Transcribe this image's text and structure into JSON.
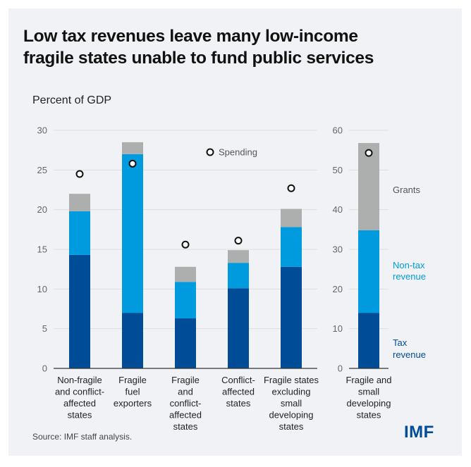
{
  "header": {
    "title_line1": "Low tax revenues leave many low-income",
    "title_line2": "fragile states unable to fund public services",
    "unit_label": "Percent of GDP"
  },
  "footer": {
    "source": "Source: IMF staff analysis.",
    "logo": "IMF"
  },
  "colors": {
    "tax": "#004C97",
    "nontax": "#009BDE",
    "grants": "#ADAFAF",
    "spending_marker_stroke": "#111111",
    "spending_marker_fill": "#FFFFFF",
    "gridline": "#DCDDE0",
    "axis": "#333333"
  },
  "chart_data": [
    {
      "type": "bar",
      "stacked": true,
      "title": "",
      "ylabel": "Percent of GDP",
      "ylim": [
        0,
        30
      ],
      "yticks": [
        0,
        5,
        10,
        15,
        20,
        25,
        30
      ],
      "grid": true,
      "categories": [
        [
          "Non-fragile",
          "and conflict-",
          "affected",
          "states"
        ],
        [
          "Fragile",
          "fuel",
          "exporters"
        ],
        [
          "Fragile",
          "and",
          "conflict-",
          "affected",
          "states"
        ],
        [
          "Conflict-",
          "affected",
          "states"
        ],
        [
          "Fragile states",
          "excluding",
          "small",
          "developing",
          "states"
        ]
      ],
      "series": [
        {
          "name": "Tax revenue",
          "values": [
            14.3,
            7.0,
            6.3,
            10.1,
            12.8
          ]
        },
        {
          "name": "Non-tax revenue",
          "values": [
            5.5,
            20.0,
            4.6,
            3.2,
            5.0
          ]
        },
        {
          "name": "Grants",
          "values": [
            2.2,
            1.5,
            1.9,
            1.6,
            2.3
          ]
        }
      ],
      "markers": {
        "name": "Spending",
        "values": [
          24.5,
          25.8,
          15.6,
          16.1,
          22.7
        ]
      },
      "legend": {
        "label": "Spending",
        "placement": "top-center"
      }
    },
    {
      "type": "bar",
      "stacked": true,
      "ylim": [
        0,
        60
      ],
      "yticks": [
        0,
        10,
        20,
        30,
        40,
        50,
        60
      ],
      "grid": true,
      "categories": [
        [
          "Fragile and",
          "small",
          "developing",
          "states"
        ]
      ],
      "series": [
        {
          "name": "Tax revenue",
          "values": [
            14.0
          ]
        },
        {
          "name": "Non-tax revenue",
          "values": [
            20.8
          ]
        },
        {
          "name": "Grants",
          "values": [
            22.0
          ]
        }
      ],
      "markers": {
        "name": "Spending",
        "values": [
          54.3
        ]
      },
      "annotations": [
        {
          "series": "Grants",
          "lines": [
            "Grants"
          ]
        },
        {
          "series": "Non-tax revenue",
          "lines": [
            "Non-tax",
            "revenue"
          ]
        },
        {
          "series": "Tax revenue",
          "lines": [
            "Tax",
            "revenue"
          ]
        }
      ]
    }
  ]
}
